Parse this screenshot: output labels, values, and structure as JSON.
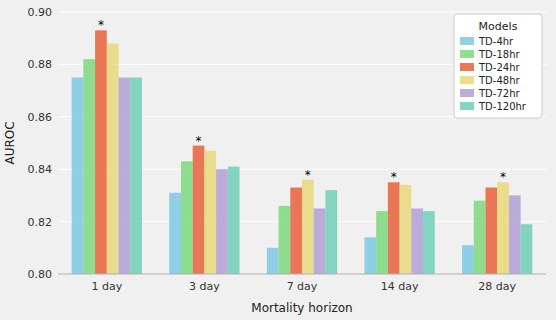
{
  "chart_data": {
    "type": "bar",
    "x_label": "Mortality horizon",
    "y_label": "AUROC",
    "categories": [
      "1 day",
      "3 day",
      "7 day",
      "14 day",
      "28 day"
    ],
    "series": [
      {
        "name": "TD-4hr",
        "color": "#7ec8e3",
        "values": [
          0.875,
          0.831,
          0.81,
          0.814,
          0.811
        ]
      },
      {
        "name": "TD-18hr",
        "color": "#7dd87d",
        "values": [
          0.882,
          0.843,
          0.826,
          0.824,
          0.828
        ]
      },
      {
        "name": "TD-24hr",
        "color": "#e8613a",
        "values": [
          0.893,
          0.849,
          0.833,
          0.835,
          0.833
        ]
      },
      {
        "name": "TD-48hr",
        "color": "#e8d87a",
        "values": [
          0.888,
          0.847,
          0.836,
          0.834,
          0.835
        ]
      },
      {
        "name": "TD-72hr",
        "color": "#b09fd4",
        "values": [
          0.875,
          0.84,
          0.825,
          0.825,
          0.83
        ]
      },
      {
        "name": "TD-120hr",
        "color": "#6ecfb8",
        "values": [
          0.875,
          0.841,
          0.832,
          0.824,
          0.819
        ]
      }
    ],
    "annotations": [
      {
        "text": "*",
        "category": "1 day",
        "series": "TD-24hr"
      },
      {
        "text": "*",
        "category": "3 day",
        "series": "TD-24hr"
      },
      {
        "text": "*",
        "category": "7 day",
        "series": "TD-48hr"
      },
      {
        "text": "*",
        "category": "14 day",
        "series": "TD-24hr"
      },
      {
        "text": "*",
        "category": "28 day",
        "series": "TD-48hr"
      }
    ],
    "ylim": [
      0.8,
      0.9
    ],
    "yticks": [
      {
        "value": 0.8,
        "label": "0.80"
      },
      0.82,
      0.84,
      0.86,
      0.88,
      {
        "value": 0.9,
        "label": "0.90"
      }
    ],
    "grid": true,
    "legend": "top-right",
    "legend_title": "Models"
  }
}
